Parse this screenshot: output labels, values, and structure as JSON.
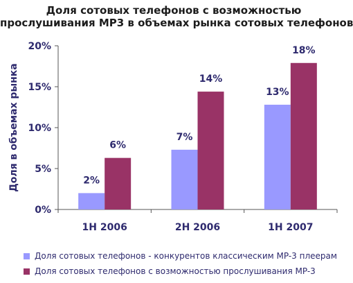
{
  "chart_data": {
    "type": "bar",
    "title_line1": "Доля сотовых телефонов с возможностью",
    "title_line2": "прослушивания MP3 в объемах рынка сотовых телефонов",
    "ylabel": "Доля в объемах рынка",
    "xlabel": "",
    "ylim": [
      0,
      20
    ],
    "yticks": [
      "0%",
      "5%",
      "10%",
      "15%",
      "20%"
    ],
    "ytick_values": [
      0,
      5,
      10,
      15,
      20
    ],
    "categories": [
      "1H 2006",
      "2H 2006",
      "1H 2007"
    ],
    "series": [
      {
        "name": "Доля сотовых телефонов - конкурентов классическим MP-3 плеерам",
        "color": "#9999ff",
        "values": [
          2,
          7.3,
          12.8
        ],
        "labels": [
          "2%",
          "7%",
          "13%"
        ]
      },
      {
        "name": "Доля сотовых телефонов с возможностью прослушивания MP-3",
        "color": "#993366",
        "values": [
          6.3,
          14.4,
          17.9
        ],
        "labels": [
          "6%",
          "14%",
          "18%"
        ]
      }
    ],
    "grid": false,
    "legend": "bottom"
  }
}
